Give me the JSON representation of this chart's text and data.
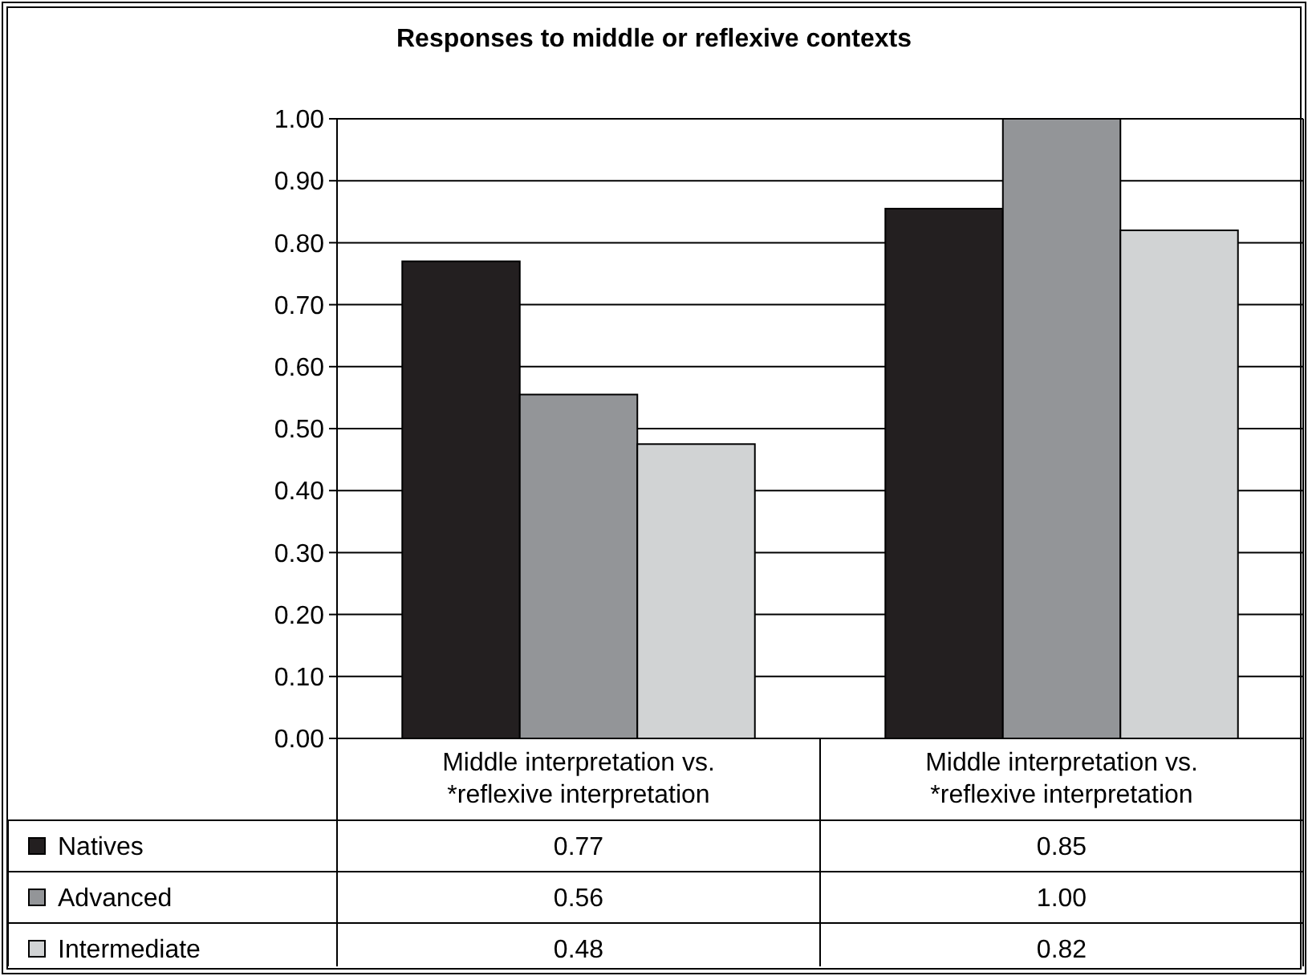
{
  "chart_data": {
    "type": "bar",
    "title": "Responses to middle or reflexive contexts",
    "categories": [
      "Middle interpretation vs. *reflexive interpretation",
      "Middle interpretation vs. *reflexive interpretation"
    ],
    "series": [
      {
        "name": "Natives",
        "color": "#231f20",
        "values": [
          0.77,
          0.855
        ],
        "value_labels": [
          "0.77",
          "0.85"
        ]
      },
      {
        "name": "Advanced",
        "color": "#939598",
        "values": [
          0.555,
          1.0
        ],
        "value_labels": [
          "0.56",
          "1.00"
        ]
      },
      {
        "name": "Intermediate",
        "color": "#d1d3d4",
        "values": [
          0.475,
          0.82
        ],
        "value_labels": [
          "0.48",
          "0.82"
        ]
      }
    ],
    "ylim": [
      0,
      1
    ],
    "yticks": [
      {
        "value": 0,
        "label": "0.00"
      },
      {
        "value": 0.1,
        "label": "0.10"
      },
      {
        "value": 0.2,
        "label": "0.20"
      },
      {
        "value": 0.3,
        "label": "0.30"
      },
      {
        "value": 0.4,
        "label": "0.40"
      },
      {
        "value": 0.5,
        "label": "0.50"
      },
      {
        "value": 0.6,
        "label": "0.60"
      },
      {
        "value": 0.7,
        "label": "0.70"
      },
      {
        "value": 0.8,
        "label": "0.80"
      },
      {
        "value": 0.9,
        "label": "0.90"
      },
      {
        "value": 1,
        "label": "1.00"
      }
    ],
    "grid": "y",
    "legend": "bottom left"
  }
}
